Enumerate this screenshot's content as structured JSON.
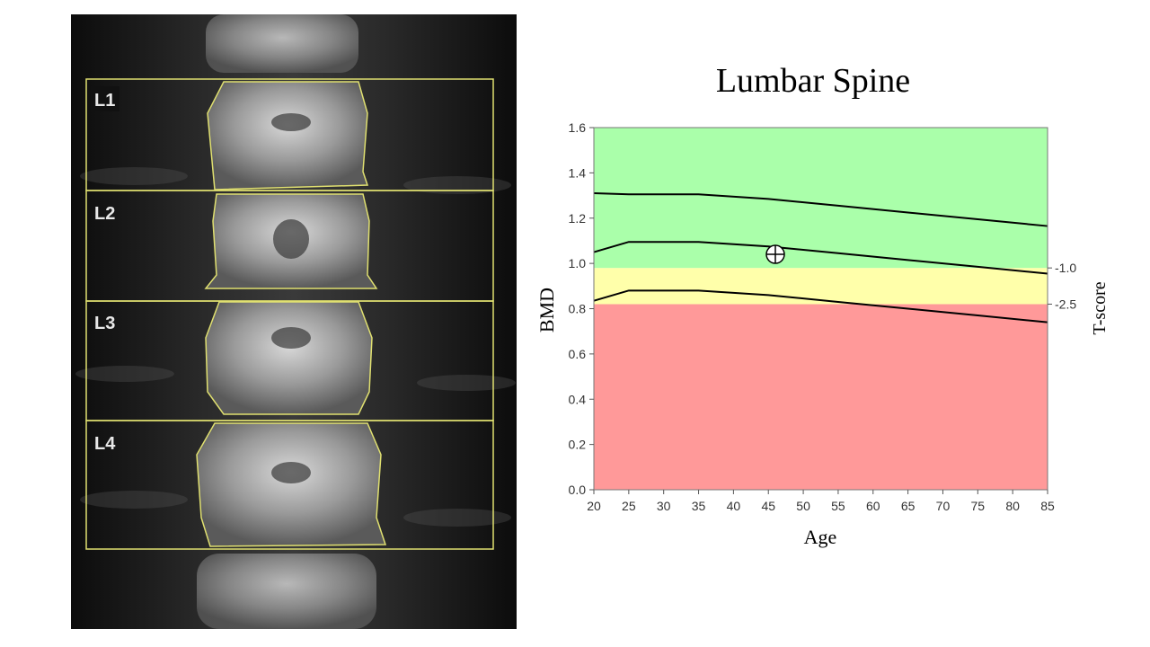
{
  "scan": {
    "regions": [
      "L1",
      "L2",
      "L3",
      "L4"
    ],
    "outline_color": "#e0e070"
  },
  "chart_data": {
    "type": "line",
    "title": "Lumbar Spine",
    "xlabel": "Age",
    "ylabel": "BMD",
    "y2label": "T-score",
    "xlim": [
      20,
      85
    ],
    "ylim": [
      0.0,
      1.6
    ],
    "x_ticks": [
      20,
      25,
      30,
      35,
      40,
      45,
      50,
      55,
      60,
      65,
      70,
      75,
      80,
      85
    ],
    "y_ticks": [
      0.0,
      0.2,
      0.4,
      0.6,
      0.8,
      1.0,
      1.2,
      1.4,
      1.6
    ],
    "y_tick_labels": [
      "0.0",
      "0.2",
      "0.4",
      "0.6",
      "0.8",
      "1.0",
      "1.2",
      "1.4",
      "1.6"
    ],
    "bands": [
      {
        "from": 0.0,
        "to": 0.82,
        "color": "#ff9999"
      },
      {
        "from": 0.82,
        "to": 0.98,
        "color": "#ffffaa"
      },
      {
        "from": 0.98,
        "to": 1.6,
        "color": "#aaffaa"
      }
    ],
    "t_score_marks": [
      {
        "label": "-1.0",
        "value": 0.98
      },
      {
        "label": "-2.5",
        "value": 0.82
      }
    ],
    "series": [
      {
        "x": [
          20,
          25,
          35,
          45,
          55,
          65,
          75,
          85
        ],
        "values": [
          1.31,
          1.305,
          1.305,
          1.285,
          1.255,
          1.225,
          1.195,
          1.165
        ]
      },
      {
        "x": [
          20,
          25,
          35,
          45,
          55,
          65,
          75,
          85
        ],
        "values": [
          1.05,
          1.095,
          1.095,
          1.075,
          1.045,
          1.015,
          0.985,
          0.955
        ]
      },
      {
        "x": [
          20,
          25,
          35,
          45,
          55,
          65,
          75,
          85
        ],
        "values": [
          0.835,
          0.88,
          0.88,
          0.86,
          0.83,
          0.8,
          0.77,
          0.74
        ]
      }
    ],
    "patient_point": {
      "x": 46,
      "y": 1.04
    },
    "grid": false
  }
}
